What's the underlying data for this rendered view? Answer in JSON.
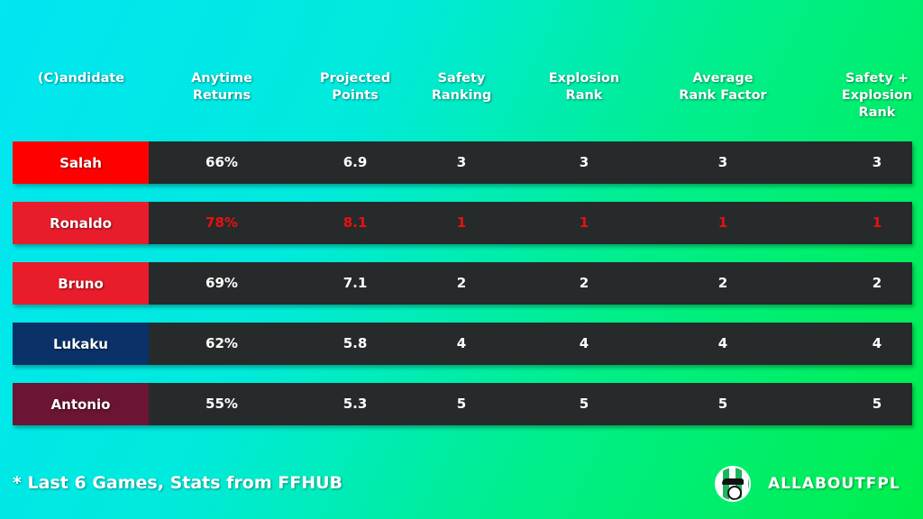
{
  "headers": [
    "(C)andidate",
    "Anytime\nReturns",
    "Projected\nPoints",
    "Safety\nRanking",
    "Explosion\nRank",
    "Average\nRank Factor",
    "Safety +\nExplosion\nRank"
  ],
  "rows": [
    {
      "name": "Salah",
      "color": "#ff0000",
      "values": [
        "66%",
        "6.9",
        "3",
        "3",
        "3",
        "3"
      ],
      "highlight": false
    },
    {
      "name": "Ronaldo",
      "color": "#e81c2a",
      "values": [
        "78%",
        "8.1",
        "1",
        "1",
        "1",
        "1"
      ],
      "highlight": true
    },
    {
      "name": "Bruno",
      "color": "#e81c2a",
      "values": [
        "69%",
        "7.1",
        "2",
        "2",
        "2",
        "2"
      ],
      "highlight": false
    },
    {
      "name": "Lukaku",
      "color": "#0a3268",
      "values": [
        "62%",
        "5.8",
        "4",
        "4",
        "4",
        "4"
      ],
      "highlight": false
    },
    {
      "name": "Antonio",
      "color": "#6b1433",
      "values": [
        "55%",
        "5.3",
        "5",
        "5",
        "5",
        "5"
      ],
      "highlight": false
    }
  ],
  "footnote": "* Last 6 Games, Stats from FFHUB",
  "brand": "ALLABOUTFPL",
  "highlight_color": "#e81010"
}
